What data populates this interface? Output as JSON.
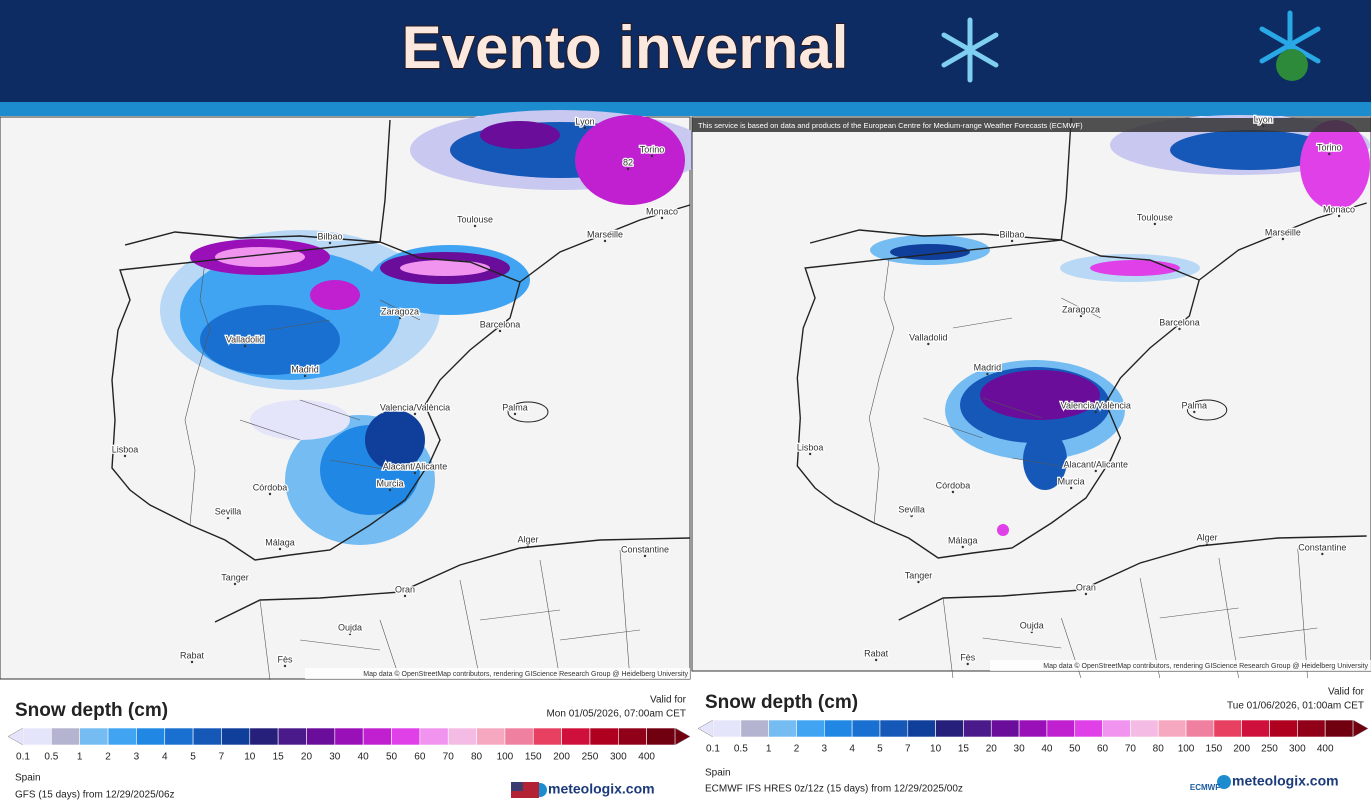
{
  "header": {
    "title": "Evento invernal"
  },
  "panels": [
    {
      "notice": null,
      "map_labels": [
        "Lyon",
        "Torino",
        "82",
        "Monaco",
        "Toulouse",
        "Marseille",
        "Bilbao",
        "Zaragoza",
        "Barcelona",
        "Valladolid",
        "Madrid",
        "Valencia/València",
        "Palma",
        "Lisboa",
        "Alacant/Alicante",
        "Córdoba",
        "Murcia",
        "Sevilla",
        "Málaga",
        "Alger",
        "Constantine",
        "Tanger",
        "Oran",
        "Oujda",
        "Rabat",
        "Fès"
      ],
      "map_credit": "Map data © OpenStreetMap contributors, rendering GIScience Research Group @ Heidelberg University",
      "legend": {
        "title": "Snow depth (cm)",
        "valid_for": "Valid for",
        "valid_time": "Mon 01/05/2026, 07:00am CET",
        "levels": [
          0.1,
          0.5,
          1,
          2,
          3,
          4,
          5,
          7,
          10,
          15,
          20,
          30,
          40,
          50,
          60,
          70,
          80,
          100,
          150,
          200,
          250,
          300,
          400
        ],
        "colors": [
          "#e4e4fa",
          "#b4b4d0",
          "#74bcf2",
          "#40a4f2",
          "#2088e4",
          "#1a70d0",
          "#1558b8",
          "#0f3f9a",
          "#26207a",
          "#4b1a8a",
          "#6a0d9a",
          "#9a10b8",
          "#c020d0",
          "#e040e8",
          "#f094f0",
          "#f4bce4",
          "#f6a8c0",
          "#f080a0",
          "#e84060",
          "#d0103c",
          "#b00020",
          "#900018",
          "#700010"
        ],
        "region": "Spain",
        "model": "GFS (15 days) from 12/29/2025/06z",
        "brand": "meteologix.com",
        "agency": null
      }
    },
    {
      "notice": "This service is based on data and products of the European Centre for Medium-range Weather Forecasts (ECMWF)",
      "map_labels": [
        "Lyon",
        "Torino",
        null,
        "Monaco",
        "Toulouse",
        "Marseille",
        "Bilbao",
        "Zaragoza",
        "Barcelona",
        "Valladolid",
        "Madrid",
        "Valencia/València",
        "Palma",
        "Lisboa",
        "Alacant/Alicante",
        "Córdoba",
        "Murcia",
        "Sevilla",
        "Málaga",
        "Alger",
        "Constantine",
        "Tanger",
        "Oran",
        "Oujda",
        "Rabat",
        "Fès"
      ],
      "map_credit": "Map data © OpenStreetMap contributors, rendering GIScience Research Group @ Heidelberg University",
      "legend": {
        "title": "Snow depth (cm)",
        "valid_for": "Valid for",
        "valid_time": "Tue 01/06/2026, 01:00am CET",
        "levels": [
          0.1,
          0.5,
          1,
          2,
          3,
          4,
          5,
          7,
          10,
          15,
          20,
          30,
          40,
          50,
          60,
          70,
          80,
          100,
          150,
          200,
          250,
          300,
          400
        ],
        "colors": [
          "#e4e4fa",
          "#b4b4d0",
          "#74bcf2",
          "#40a4f2",
          "#2088e4",
          "#1a70d0",
          "#1558b8",
          "#0f3f9a",
          "#26207a",
          "#4b1a8a",
          "#6a0d9a",
          "#9a10b8",
          "#c020d0",
          "#e040e8",
          "#f094f0",
          "#f4bce4",
          "#f6a8c0",
          "#f080a0",
          "#e84060",
          "#d0103c",
          "#b00020",
          "#900018",
          "#700010"
        ],
        "region": "Spain",
        "model": "ECMWF IFS HRES 0z/12z (15 days) from 12/29/2025/00z",
        "brand": "meteologix.com",
        "agency": "ECMWF"
      }
    }
  ]
}
